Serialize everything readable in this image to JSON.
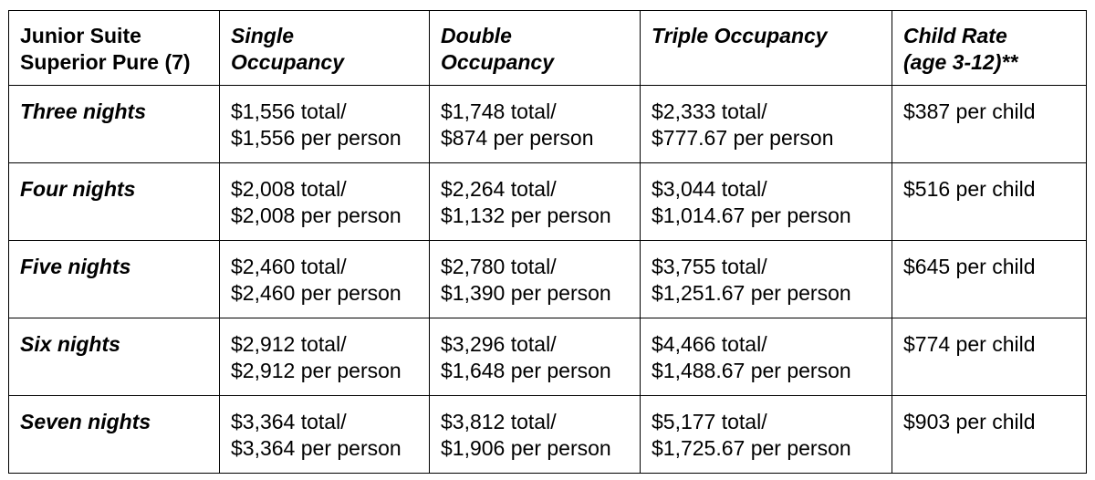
{
  "table": {
    "header": {
      "corner_line1": "Junior Suite",
      "corner_line2": "Superior Pure (7)",
      "single_line1": "Single",
      "single_line2": "Occupancy",
      "double_line1": "Double",
      "double_line2": "Occupancy",
      "triple_line1": "Triple Occupancy",
      "child_line1": "Child Rate",
      "child_line2": "(age 3-12)**"
    },
    "rows": [
      {
        "label": "Three nights",
        "single_total": "$1,556 total/",
        "single_pp": "$1,556 per person",
        "double_total": "$1,748 total/",
        "double_pp": "$874 per person",
        "triple_total": "$2,333 total/",
        "triple_pp": "$777.67 per person",
        "child": "$387 per child"
      },
      {
        "label": "Four nights",
        "single_total": "$2,008 total/",
        "single_pp": "$2,008 per person",
        "double_total": "$2,264 total/",
        "double_pp": "$1,132 per person",
        "triple_total": "$3,044 total/",
        "triple_pp": "$1,014.67 per person",
        "child": "$516 per child"
      },
      {
        "label": "Five nights",
        "single_total": "$2,460 total/",
        "single_pp": "$2,460 per person",
        "double_total": "$2,780 total/",
        "double_pp": "$1,390 per person",
        "triple_total": "$3,755 total/",
        "triple_pp": "$1,251.67 per person",
        "child": "$645 per child"
      },
      {
        "label": "Six nights",
        "single_total": "$2,912 total/",
        "single_pp": "$2,912 per person",
        "double_total": "$3,296 total/",
        "double_pp": "$1,648 per person",
        "triple_total": "$4,466 total/",
        "triple_pp": "$1,488.67 per person",
        "child": "$774 per child"
      },
      {
        "label": "Seven nights",
        "single_total": "$3,364 total/",
        "single_pp": "$3,364 per person",
        "double_total": "$3,812 total/",
        "double_pp": "$1,906 per person",
        "triple_total": "$5,177 total/",
        "triple_pp": "$1,725.67 per person",
        "child": "$903 per child"
      }
    ]
  }
}
